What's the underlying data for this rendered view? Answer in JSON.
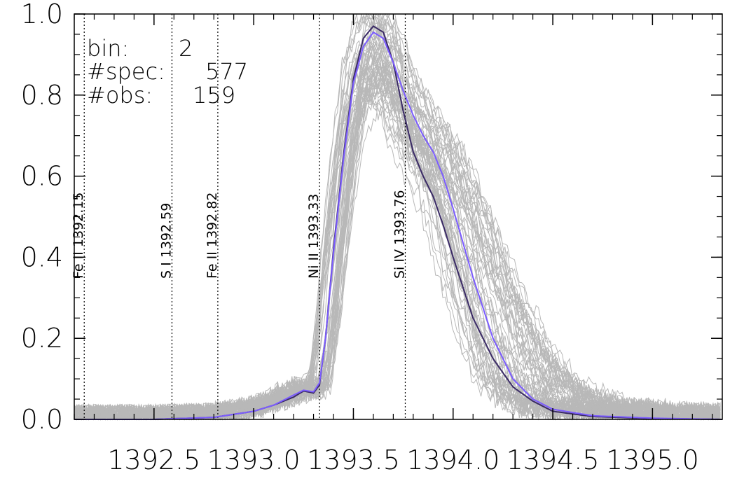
{
  "chart_data": {
    "type": "line",
    "xlim": [
      1392.1,
      1395.35
    ],
    "ylim": [
      0.0,
      1.0
    ],
    "xticks": [
      "1392.5",
      "1393.0",
      "1393.5",
      "1394.0",
      "1394.5",
      "1395.0"
    ],
    "xtick_values": [
      1392.5,
      1393.0,
      1393.5,
      1394.0,
      1394.5,
      1395.0
    ],
    "yticks": [
      "0.0",
      "0.2",
      "0.4",
      "0.6",
      "0.8",
      "1.0"
    ],
    "ytick_values": [
      0.0,
      0.2,
      0.4,
      0.6,
      0.8,
      1.0
    ],
    "info": {
      "bin_label": "bin:",
      "bin_value": "2",
      "spec_label": "#spec:",
      "spec_value": "577",
      "obs_label": "#obs:",
      "obs_value": "159"
    },
    "reference_lines": [
      {
        "label": "Fe II 1392.15",
        "x": 1392.15
      },
      {
        "label": "S I 1392.59",
        "x": 1392.59
      },
      {
        "label": "Fe II 1392.82",
        "x": 1392.82
      },
      {
        "label": "Ni II 1393.33",
        "x": 1393.33
      },
      {
        "label": "Si IV 1393.76",
        "x": 1393.76
      }
    ],
    "series": [
      {
        "color": "#3a2a66",
        "x": [
          1392.1,
          1392.5,
          1392.8,
          1393.0,
          1393.1,
          1393.2,
          1393.25,
          1393.3,
          1393.33,
          1393.36,
          1393.4,
          1393.45,
          1393.5,
          1393.55,
          1393.6,
          1393.65,
          1393.7,
          1393.75,
          1393.8,
          1393.85,
          1393.9,
          1393.95,
          1394.0,
          1394.1,
          1394.2,
          1394.3,
          1394.4,
          1394.5,
          1394.7,
          1395.0,
          1395.35
        ],
        "y": [
          0.0,
          0.0,
          0.005,
          0.02,
          0.035,
          0.055,
          0.07,
          0.065,
          0.085,
          0.2,
          0.42,
          0.65,
          0.84,
          0.94,
          0.97,
          0.955,
          0.88,
          0.76,
          0.66,
          0.6,
          0.55,
          0.48,
          0.4,
          0.25,
          0.15,
          0.08,
          0.045,
          0.02,
          0.007,
          0.002,
          0.0
        ]
      },
      {
        "color": "#7b5cff",
        "x": [
          1392.1,
          1392.5,
          1392.8,
          1393.0,
          1393.1,
          1393.2,
          1393.25,
          1393.3,
          1393.33,
          1393.36,
          1393.4,
          1393.45,
          1393.5,
          1393.55,
          1393.6,
          1393.65,
          1393.7,
          1393.75,
          1393.8,
          1393.85,
          1393.9,
          1393.95,
          1394.0,
          1394.1,
          1394.2,
          1394.3,
          1394.4,
          1394.5,
          1394.7,
          1395.0,
          1395.35
        ],
        "y": [
          0.0,
          0.0,
          0.005,
          0.02,
          0.035,
          0.06,
          0.072,
          0.068,
          0.09,
          0.2,
          0.41,
          0.64,
          0.83,
          0.92,
          0.955,
          0.94,
          0.88,
          0.81,
          0.75,
          0.7,
          0.66,
          0.6,
          0.52,
          0.35,
          0.2,
          0.1,
          0.05,
          0.025,
          0.009,
          0.003,
          0.0
        ]
      }
    ],
    "colors": {
      "background_spectra": "#b8b8b8",
      "axes": "#000000"
    }
  }
}
